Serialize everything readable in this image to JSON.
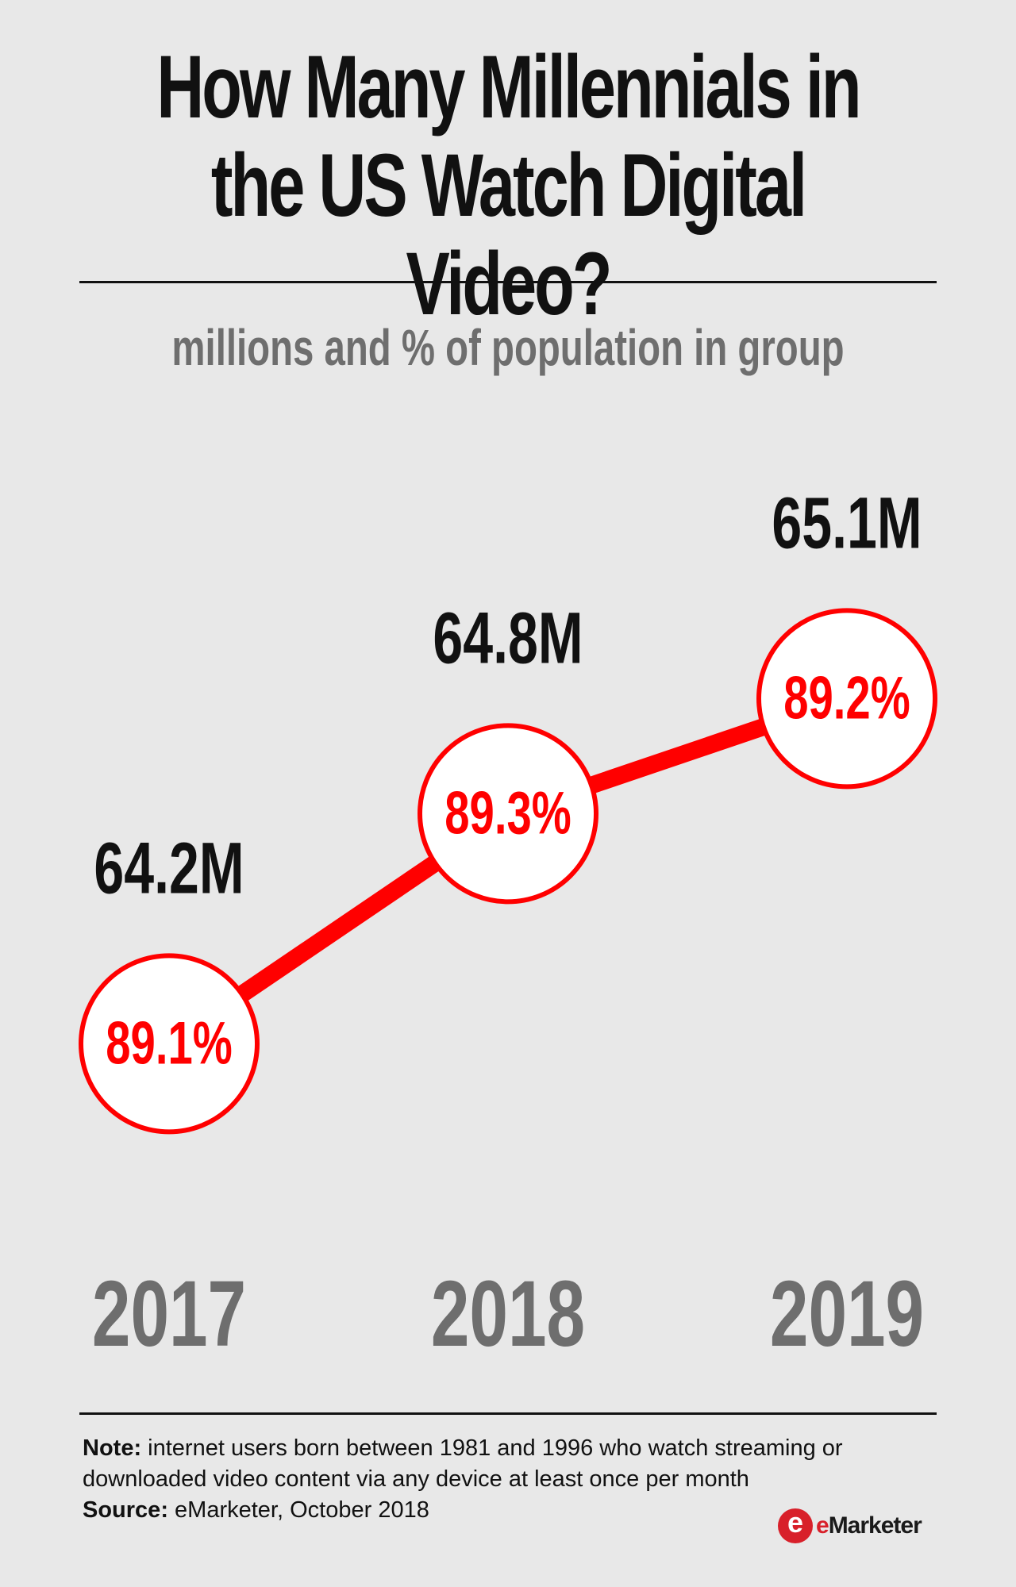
{
  "header": {
    "title_line1": "How Many Millennials in",
    "title_line2": "the US Watch Digital Video?",
    "subtitle": "millions and % of population in group"
  },
  "chart_data": {
    "type": "line",
    "title": "How Many Millennials in the US Watch Digital Video?",
    "subtitle": "millions and % of population in group",
    "categories": [
      "2017",
      "2018",
      "2019"
    ],
    "series": [
      {
        "values": [
          64.2,
          64.8,
          65.1
        ],
        "labels": [
          "64.2M",
          "64.8M",
          "65.1M"
        ]
      },
      {
        "values": [
          89.1,
          89.3,
          89.2
        ],
        "labels": [
          "89.1%",
          "89.3%",
          "89.2%"
        ]
      }
    ],
    "ylim": [
      64.0,
      65.2
    ]
  },
  "footer": {
    "note_label": "Note:",
    "note_text": "internet users born between 1981 and 1996 who watch streaming or downloaded video content via any device at least once per month",
    "source_label": "Source:",
    "source_text": "eMarketer, October 2018",
    "brand_e": "e",
    "brand_rest": "Marketer"
  },
  "colors": {
    "accent": "#ff0000",
    "text": "#111111",
    "muted": "#6e6e6e",
    "background": "#e8e8e8"
  }
}
